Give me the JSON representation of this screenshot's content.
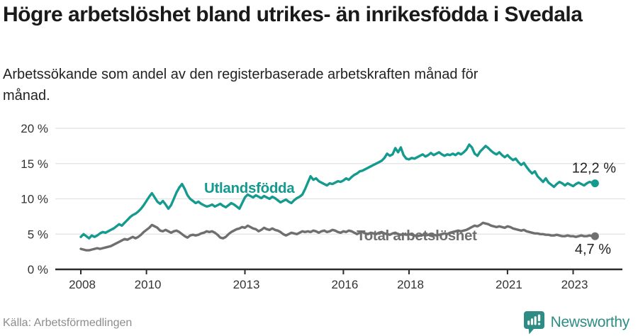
{
  "header": {
    "title": "Högre arbetslöshet bland utrikes- än inrikesfödda i Svedala",
    "subtitle": "Arbetssökande som andel av den registerbaserade arbetskraften månad för månad."
  },
  "chart_data": {
    "type": "line",
    "title": "Högre arbetslöshet bland utrikes- än inrikesfödda i Svedala",
    "subtitle": "Arbetssökande som andel av den registerbaserade arbetskraften månad för månad.",
    "x_start_year": 2008,
    "x_step_months": 1,
    "xlim": [
      2008,
      2023.75
    ],
    "ylim": [
      0,
      21
    ],
    "grid": true,
    "x_ticks": [
      {
        "year": 2008,
        "label": "2008"
      },
      {
        "year": 2010,
        "label": "2010"
      },
      {
        "year": 2013,
        "label": "2013"
      },
      {
        "year": 2016,
        "label": "2016"
      },
      {
        "year": 2018,
        "label": "2018"
      },
      {
        "year": 2021,
        "label": "2021"
      },
      {
        "year": 2023,
        "label": "2023"
      }
    ],
    "y_ticks": [
      {
        "value": 0,
        "label": "0 %"
      },
      {
        "value": 5,
        "label": "5 %"
      },
      {
        "value": 10,
        "label": "10 %"
      },
      {
        "value": 15,
        "label": "15 %"
      },
      {
        "value": 20,
        "label": "20 %"
      }
    ],
    "series": [
      {
        "name": "Utlandsfödda",
        "color": "#149a8e",
        "end_label": "12,2 %",
        "latest_value": 12.2,
        "values": [
          4.6,
          5.0,
          4.7,
          4.4,
          4.8,
          4.6,
          4.8,
          5.1,
          5.3,
          5.2,
          5.4,
          5.6,
          5.8,
          6.1,
          6.4,
          6.2,
          6.6,
          7.0,
          7.4,
          7.7,
          7.9,
          8.2,
          8.6,
          9.1,
          9.7,
          10.3,
          10.8,
          10.2,
          9.6,
          9.3,
          9.7,
          9.2,
          8.6,
          9.1,
          10.0,
          10.9,
          11.6,
          12.1,
          11.4,
          10.5,
          10.0,
          9.7,
          9.4,
          9.6,
          9.3,
          9.1,
          8.9,
          9.0,
          9.2,
          8.9,
          9.1,
          9.3,
          9.0,
          8.8,
          9.1,
          9.4,
          9.2,
          8.9,
          8.6,
          9.4,
          10.2,
          10.6,
          10.4,
          10.2,
          10.5,
          10.3,
          10.1,
          10.4,
          10.2,
          10.0,
          10.3,
          10.1,
          9.8,
          9.5,
          9.7,
          9.9,
          9.6,
          9.4,
          9.8,
          10.1,
          10.3,
          10.6,
          11.4,
          12.3,
          13.2,
          12.7,
          12.9,
          12.5,
          12.3,
          12.1,
          11.9,
          12.2,
          12.1,
          12.3,
          12.5,
          12.4,
          12.6,
          12.9,
          12.7,
          13.1,
          13.4,
          13.6,
          13.9,
          14.0,
          14.2,
          14.4,
          14.6,
          14.8,
          15.0,
          15.2,
          15.4,
          15.8,
          16.4,
          16.1,
          16.3,
          17.2,
          16.6,
          17.3,
          16.2,
          15.7,
          15.6,
          15.8,
          15.7,
          15.9,
          16.1,
          16.3,
          16.0,
          16.2,
          16.5,
          16.2,
          16.4,
          16.6,
          16.3,
          16.1,
          16.3,
          16.2,
          16.4,
          16.2,
          16.5,
          16.3,
          16.6,
          17.0,
          17.7,
          17.3,
          16.4,
          16.1,
          16.7,
          17.1,
          17.5,
          17.2,
          16.8,
          16.5,
          16.3,
          16.6,
          16.2,
          15.9,
          16.2,
          15.8,
          15.5,
          15.7,
          15.2,
          14.8,
          15.1,
          14.5,
          14.0,
          13.6,
          13.9,
          13.2,
          12.8,
          12.4,
          12.9,
          12.3,
          12.0,
          11.7,
          12.1,
          12.4,
          12.2,
          11.9,
          12.2,
          12.0,
          11.8,
          12.1,
          12.3,
          12.1,
          11.9,
          12.2,
          12.4,
          12.3,
          12.2
        ]
      },
      {
        "name": "Total arbetslöshet",
        "color": "#6f6f6f",
        "end_label": "4,7 %",
        "latest_value": 4.7,
        "values": [
          2.9,
          2.8,
          2.7,
          2.7,
          2.8,
          2.9,
          3.0,
          2.9,
          3.0,
          3.1,
          3.2,
          3.3,
          3.5,
          3.7,
          3.9,
          4.1,
          4.3,
          4.2,
          4.4,
          4.6,
          4.4,
          4.6,
          4.9,
          5.3,
          5.6,
          5.9,
          6.3,
          6.1,
          5.9,
          5.5,
          5.4,
          5.6,
          5.4,
          5.2,
          5.4,
          5.5,
          5.3,
          5.0,
          4.7,
          4.5,
          4.8,
          4.9,
          4.8,
          4.9,
          5.1,
          5.2,
          5.4,
          5.3,
          5.4,
          5.2,
          4.9,
          4.5,
          4.4,
          4.6,
          5.0,
          5.3,
          5.5,
          5.7,
          5.8,
          6.0,
          5.9,
          6.2,
          6.0,
          5.8,
          5.7,
          5.4,
          5.6,
          5.9,
          5.7,
          5.6,
          5.8,
          5.6,
          5.5,
          5.3,
          5.0,
          4.8,
          5.0,
          5.2,
          5.1,
          5.0,
          5.2,
          5.4,
          5.3,
          5.4,
          5.3,
          5.5,
          5.4,
          5.2,
          5.4,
          5.5,
          5.3,
          5.4,
          5.6,
          5.5,
          5.3,
          5.2,
          5.4,
          5.3,
          5.5,
          5.4,
          5.2,
          5.0,
          5.2,
          5.3,
          5.1,
          5.0,
          5.2,
          5.1,
          5.0,
          5.2,
          5.3,
          5.1,
          5.0,
          4.9,
          5.1,
          5.2,
          5.0,
          4.9,
          5.0,
          4.9,
          5.0,
          4.9,
          4.8,
          4.7,
          4.8,
          4.9,
          4.8,
          4.9,
          5.0,
          4.9,
          4.8,
          4.9,
          5.0,
          5.1,
          5.0,
          5.2,
          5.3,
          5.4,
          5.5,
          5.4,
          5.5,
          5.6,
          5.8,
          6.0,
          6.2,
          6.1,
          6.3,
          6.6,
          6.5,
          6.4,
          6.2,
          6.1,
          6.0,
          6.1,
          6.0,
          5.9,
          6.1,
          6.0,
          5.8,
          5.7,
          5.6,
          5.5,
          5.6,
          5.4,
          5.3,
          5.2,
          5.1,
          5.1,
          5.0,
          5.0,
          4.9,
          4.9,
          4.8,
          4.8,
          4.9,
          4.8,
          4.7,
          4.7,
          4.8,
          4.7,
          4.7,
          4.6,
          4.7,
          4.8,
          4.7,
          4.7,
          4.8,
          4.7,
          4.7
        ]
      }
    ],
    "colors": {
      "grid": "#e2e2e2",
      "axis": "#2b2b2b",
      "tick_text": "#333333",
      "value_label_text": "#222222",
      "accent_teal": "#149a8e",
      "series_gray": "#6f6f6f"
    }
  },
  "footer": {
    "source": "Källa: Arbetsförmedlingen",
    "brand": "Newsworthy"
  }
}
